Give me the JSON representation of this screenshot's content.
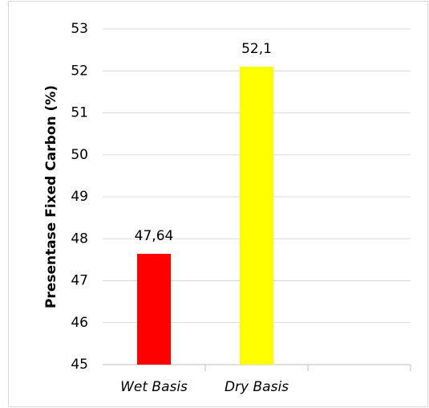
{
  "chart_data": {
    "type": "bar",
    "y_label": "Presentase Fixed Carbon (%)",
    "categories": [
      "Wet Basis",
      "Dry Basis",
      null
    ],
    "values": [
      47.64,
      52.1,
      null
    ],
    "value_labels": [
      "47,64",
      "52,1",
      null
    ],
    "colors": [
      "#ff0000",
      "#ffff00",
      null
    ],
    "ylim": [
      45,
      53
    ],
    "yticks": [
      45,
      46,
      47,
      48,
      49,
      50,
      51,
      52,
      53
    ],
    "grid": true
  }
}
